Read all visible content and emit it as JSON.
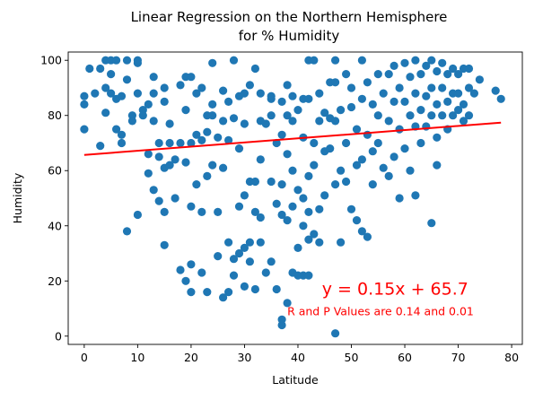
{
  "chart_data": {
    "type": "scatter",
    "title": [
      "Linear Regression on the Northern Hemisphere",
      "for % Humidity"
    ],
    "xlabel": "Latitude",
    "ylabel": "Humidity",
    "xlim": [
      -3,
      82
    ],
    "ylim": [
      -3,
      103
    ],
    "xticks": [
      0,
      10,
      20,
      30,
      40,
      50,
      60,
      70,
      80
    ],
    "yticks": [
      0,
      20,
      40,
      60,
      80,
      100
    ],
    "grid": false,
    "marker_color": "#1f77b4",
    "line_color": "#ff0000",
    "regression": {
      "slope": 0.15,
      "intercept": 65.7,
      "x_range": [
        0,
        78
      ]
    },
    "equation_text": "y = 0.15x + 65.7",
    "equation_pos": [
      44.5,
      15
    ],
    "rp_text": "R and P Values are 0.14 and 0.01",
    "rp_pos": [
      38,
      7.5
    ],
    "points": [
      [
        0,
        87
      ],
      [
        0,
        84
      ],
      [
        0,
        75
      ],
      [
        1,
        97
      ],
      [
        2,
        88
      ],
      [
        3,
        69
      ],
      [
        3,
        97
      ],
      [
        4,
        100
      ],
      [
        4,
        90
      ],
      [
        4,
        81
      ],
      [
        5,
        100
      ],
      [
        5,
        88
      ],
      [
        5,
        95
      ],
      [
        6,
        100
      ],
      [
        6,
        86
      ],
      [
        6,
        75
      ],
      [
        7,
        70
      ],
      [
        7,
        73
      ],
      [
        7,
        87
      ],
      [
        8,
        93
      ],
      [
        8,
        38
      ],
      [
        8,
        100
      ],
      [
        9,
        80
      ],
      [
        9,
        78
      ],
      [
        10,
        99
      ],
      [
        10,
        100
      ],
      [
        10,
        88
      ],
      [
        10,
        44
      ],
      [
        11,
        82
      ],
      [
        11,
        80
      ],
      [
        12,
        84
      ],
      [
        12,
        66
      ],
      [
        12,
        59
      ],
      [
        13,
        94
      ],
      [
        13,
        88
      ],
      [
        13,
        78
      ],
      [
        13,
        53
      ],
      [
        14,
        49
      ],
      [
        14,
        70
      ],
      [
        14,
        65
      ],
      [
        15,
        85
      ],
      [
        15,
        90
      ],
      [
        15,
        61
      ],
      [
        15,
        45
      ],
      [
        15,
        33
      ],
      [
        16,
        70
      ],
      [
        16,
        77
      ],
      [
        16,
        62
      ],
      [
        17,
        64
      ],
      [
        17,
        50
      ],
      [
        18,
        91
      ],
      [
        18,
        70
      ],
      [
        18,
        24
      ],
      [
        19,
        94
      ],
      [
        19,
        82
      ],
      [
        19,
        63
      ],
      [
        19,
        20
      ],
      [
        20,
        70
      ],
      [
        20,
        94
      ],
      [
        20,
        47
      ],
      [
        20,
        26
      ],
      [
        20,
        16
      ],
      [
        21,
        88
      ],
      [
        21,
        73
      ],
      [
        21,
        55
      ],
      [
        22,
        90
      ],
      [
        22,
        71
      ],
      [
        22,
        45
      ],
      [
        22,
        23
      ],
      [
        23,
        80
      ],
      [
        23,
        74
      ],
      [
        23,
        58
      ],
      [
        23,
        16
      ],
      [
        24,
        99
      ],
      [
        24,
        80
      ],
      [
        24,
        84
      ],
      [
        24,
        62
      ],
      [
        25,
        72
      ],
      [
        25,
        45
      ],
      [
        25,
        29
      ],
      [
        26,
        89
      ],
      [
        26,
        78
      ],
      [
        26,
        61
      ],
      [
        26,
        14
      ],
      [
        27,
        85
      ],
      [
        27,
        71
      ],
      [
        27,
        34
      ],
      [
        27,
        16
      ],
      [
        28,
        100
      ],
      [
        28,
        79
      ],
      [
        28,
        28
      ],
      [
        28,
        22
      ],
      [
        29,
        87
      ],
      [
        29,
        68
      ],
      [
        29,
        47
      ],
      [
        29,
        30
      ],
      [
        30,
        88
      ],
      [
        30,
        77
      ],
      [
        30,
        51
      ],
      [
        30,
        32
      ],
      [
        30,
        18
      ],
      [
        31,
        91
      ],
      [
        31,
        56
      ],
      [
        31,
        34
      ],
      [
        31,
        27
      ],
      [
        32,
        97
      ],
      [
        32,
        56
      ],
      [
        32,
        45
      ],
      [
        32,
        17
      ],
      [
        33,
        88
      ],
      [
        33,
        78
      ],
      [
        33,
        64
      ],
      [
        33,
        43
      ],
      [
        33,
        34
      ],
      [
        34,
        77
      ],
      [
        34,
        23
      ],
      [
        35,
        86
      ],
      [
        35,
        87
      ],
      [
        35,
        80
      ],
      [
        35,
        56
      ],
      [
        35,
        27
      ],
      [
        36,
        70
      ],
      [
        36,
        48
      ],
      [
        36,
        17
      ],
      [
        37,
        85
      ],
      [
        37,
        73
      ],
      [
        37,
        55
      ],
      [
        37,
        44
      ],
      [
        37,
        6
      ],
      [
        37,
        4
      ],
      [
        38,
        80
      ],
      [
        38,
        91
      ],
      [
        38,
        66
      ],
      [
        38,
        42
      ],
      [
        38,
        12
      ],
      [
        39,
        78
      ],
      [
        39,
        87
      ],
      [
        39,
        60
      ],
      [
        39,
        47
      ],
      [
        39,
        23
      ],
      [
        40,
        82
      ],
      [
        40,
        53
      ],
      [
        40,
        32
      ],
      [
        40,
        22
      ],
      [
        41,
        86
      ],
      [
        41,
        72
      ],
      [
        41,
        50
      ],
      [
        41,
        40
      ],
      [
        41,
        22
      ],
      [
        42,
        100
      ],
      [
        42,
        86
      ],
      [
        42,
        58
      ],
      [
        42,
        45
      ],
      [
        42,
        35
      ],
      [
        42,
        22
      ],
      [
        43,
        100
      ],
      [
        43,
        70
      ],
      [
        43,
        62
      ],
      [
        43,
        37
      ],
      [
        44,
        88
      ],
      [
        44,
        78
      ],
      [
        44,
        46
      ],
      [
        44,
        34
      ],
      [
        45,
        81
      ],
      [
        45,
        67
      ],
      [
        45,
        51
      ],
      [
        46,
        92
      ],
      [
        46,
        79
      ],
      [
        46,
        68
      ],
      [
        47,
        100
      ],
      [
        47,
        92
      ],
      [
        47,
        78
      ],
      [
        47,
        55
      ],
      [
        47,
        1
      ],
      [
        48,
        82
      ],
      [
        48,
        34
      ],
      [
        48,
        60
      ],
      [
        49,
        95
      ],
      [
        49,
        70
      ],
      [
        49,
        56
      ],
      [
        50,
        90
      ],
      [
        50,
        83
      ],
      [
        50,
        46
      ],
      [
        51,
        75
      ],
      [
        51,
        62
      ],
      [
        51,
        42
      ],
      [
        52,
        100
      ],
      [
        52,
        86
      ],
      [
        52,
        64
      ],
      [
        52,
        38
      ],
      [
        53,
        92
      ],
      [
        53,
        73
      ],
      [
        53,
        36
      ],
      [
        54,
        84
      ],
      [
        54,
        67
      ],
      [
        54,
        55
      ],
      [
        55,
        95
      ],
      [
        55,
        80
      ],
      [
        55,
        70
      ],
      [
        56,
        88
      ],
      [
        56,
        61
      ],
      [
        57,
        95
      ],
      [
        57,
        78
      ],
      [
        57,
        58
      ],
      [
        58,
        98
      ],
      [
        58,
        85
      ],
      [
        58,
        65
      ],
      [
        59,
        90
      ],
      [
        59,
        75
      ],
      [
        59,
        50
      ],
      [
        60,
        99
      ],
      [
        60,
        85
      ],
      [
        60,
        68
      ],
      [
        61,
        94
      ],
      [
        61,
        80
      ],
      [
        61,
        60
      ],
      [
        62,
        100
      ],
      [
        62,
        88
      ],
      [
        62,
        76
      ],
      [
        62,
        51
      ],
      [
        63,
        95
      ],
      [
        63,
        82
      ],
      [
        63,
        70
      ],
      [
        64,
        98
      ],
      [
        64,
        87
      ],
      [
        64,
        76
      ],
      [
        65,
        100
      ],
      [
        65,
        90
      ],
      [
        65,
        80
      ],
      [
        65,
        41
      ],
      [
        66,
        96
      ],
      [
        66,
        84
      ],
      [
        66,
        72
      ],
      [
        66,
        62
      ],
      [
        67,
        99
      ],
      [
        67,
        90
      ],
      [
        67,
        80
      ],
      [
        68,
        95
      ],
      [
        68,
        85
      ],
      [
        68,
        75
      ],
      [
        69,
        97
      ],
      [
        69,
        88
      ],
      [
        69,
        80
      ],
      [
        70,
        95
      ],
      [
        70,
        88
      ],
      [
        70,
        82
      ],
      [
        71,
        97
      ],
      [
        71,
        84
      ],
      [
        71,
        78
      ],
      [
        72,
        97
      ],
      [
        72,
        90
      ],
      [
        72,
        80
      ],
      [
        73,
        88
      ],
      [
        74,
        93
      ],
      [
        77,
        89
      ],
      [
        78,
        86
      ]
    ]
  }
}
